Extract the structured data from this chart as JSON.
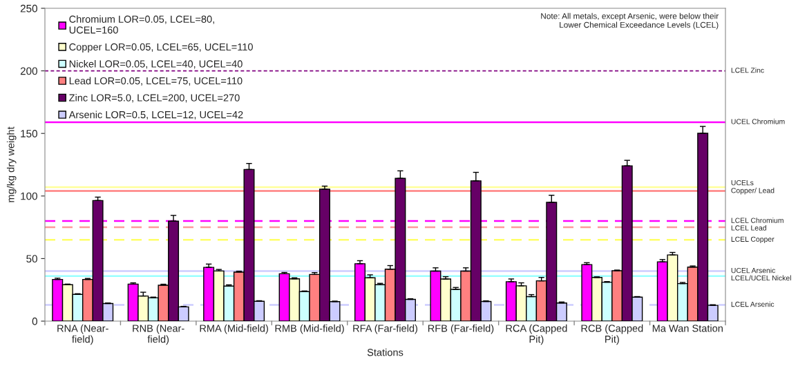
{
  "chart_data": {
    "type": "bar",
    "xlabel": "Stations",
    "ylabel": "mg/kg dry weight",
    "categories": [
      "RNA (Near-\nfield)",
      "RNB (Near-\nfield)",
      "RMA (Mid-field)",
      "RMB (Mid-field)",
      "RFA (Far-field)",
      "RFB (Far-field)",
      "RCA (Capped\nPit)",
      "RCB (Capped\nPit)",
      "Ma Wan Station"
    ],
    "series": [
      {
        "name": "Chromium LOR=0.05, LCEL=80,\nUCEL=160",
        "color": "#ff00ff",
        "values": [
          33.3,
          29.6,
          43.0,
          37.9,
          45.9,
          40.0,
          31.5,
          45.2,
          47.4
        ],
        "errors": [
          [
            33.3,
            34.3
          ],
          [
            29.6,
            30.6
          ],
          [
            43.0,
            45.6
          ],
          [
            37.9,
            38.9
          ],
          [
            45.9,
            48.3
          ],
          [
            40.0,
            42.6
          ],
          [
            31.5,
            33.7
          ],
          [
            45.2,
            46.7
          ],
          [
            47.4,
            49.2
          ]
        ]
      },
      {
        "name": "Copper LOR=0.05, LCEL=65, UCEL=110",
        "color": "#ffffcc",
        "values": [
          29.1,
          20.1,
          40.1,
          33.8,
          34.6,
          33.7,
          28.2,
          34.9,
          52.9
        ],
        "errors": [
          [
            29.1,
            29.6
          ],
          [
            20.1,
            23.1
          ],
          [
            40.1,
            41.3
          ],
          [
            33.8,
            34.6
          ],
          [
            34.6,
            37.0
          ],
          [
            33.7,
            35.5
          ],
          [
            28.2,
            30.6
          ],
          [
            34.9,
            35.4
          ],
          [
            52.9,
            54.9
          ]
        ]
      },
      {
        "name": "Nickel LOR=0.05, LCEL=40, UCEL=40",
        "color": "#ccffff",
        "values": [
          21.4,
          18.7,
          28.0,
          23.6,
          29.1,
          25.4,
          19.6,
          31.1,
          30.0
        ],
        "errors": [
          [
            21.4,
            21.9
          ],
          [
            18.7,
            19.2
          ],
          [
            28.0,
            29.0
          ],
          [
            23.6,
            24.1
          ],
          [
            29.1,
            30.2
          ],
          [
            25.4,
            26.9
          ],
          [
            19.6,
            21.2
          ],
          [
            31.1,
            31.6
          ],
          [
            30.0,
            30.9
          ]
        ]
      },
      {
        "name": "Lead LOR=0.05, LCEL=75, UCEL=110",
        "color": "#ff8080",
        "values": [
          33.3,
          28.7,
          39.2,
          37.3,
          41.5,
          40.0,
          32.2,
          40.3,
          43.2
        ],
        "errors": [
          [
            33.3,
            34.1
          ],
          [
            28.7,
            29.5
          ],
          [
            39.2,
            39.9
          ],
          [
            37.3,
            38.8
          ],
          [
            41.5,
            44.4
          ],
          [
            40.0,
            42.6
          ],
          [
            32.2,
            34.9
          ],
          [
            40.3,
            40.8
          ],
          [
            43.2,
            44.1
          ]
        ]
      },
      {
        "name": "Zinc LOR=5.0, LCEL=200, UCEL=270",
        "color": "#660066",
        "values": [
          96.4,
          79.9,
          121.2,
          105.5,
          114.1,
          112.1,
          94.9,
          124.1,
          150.1
        ],
        "errors": [
          [
            96.4,
            99.1
          ],
          [
            79.9,
            84.5
          ],
          [
            121.2,
            126.0
          ],
          [
            105.5,
            107.9
          ],
          [
            114.1,
            120.1
          ],
          [
            112.1,
            118.9
          ],
          [
            94.9,
            100.6
          ],
          [
            124.1,
            128.5
          ],
          [
            150.1,
            155.6
          ]
        ]
      },
      {
        "name": "Arsenic LOR=0.5, LCEL=12, UCEL=42",
        "color": "#ccccff",
        "values": [
          14.1,
          11.4,
          15.9,
          15.6,
          17.4,
          15.7,
          14.5,
          19.2,
          12.6
        ],
        "errors": [
          [
            14.1,
            14.5
          ],
          [
            11.4,
            11.8
          ],
          [
            15.9,
            16.3
          ],
          [
            15.6,
            16.0
          ],
          [
            17.4,
            17.9
          ],
          [
            15.7,
            16.2
          ],
          [
            14.5,
            15.3
          ],
          [
            19.2,
            19.6
          ],
          [
            12.6,
            13.1
          ]
        ]
      }
    ],
    "ylim": [
      0,
      250
    ],
    "yticks": [
      0,
      50,
      100,
      150,
      200,
      250
    ],
    "grid": false,
    "legend": "top left",
    "ref_lines": [
      {
        "axis": "y",
        "value": 200,
        "label": "LCEL Zinc",
        "color": "#800080",
        "line_style": "dotted"
      },
      {
        "axis": "y",
        "value": 159,
        "label": "UCEL Chromium",
        "color": "#ff00ff",
        "line_style": "solid"
      },
      {
        "axis": "y",
        "value": 107,
        "label": "UCELs\nCopper/ Lead",
        "color": "#ffff99",
        "line_style": "solid"
      },
      {
        "axis": "y",
        "value": 104,
        "color": "#ff8080",
        "line_style": "solid"
      },
      {
        "axis": "y",
        "value": 80,
        "label": "LCEL Chromium",
        "color": "#ff00ff",
        "line_style": "dashed"
      },
      {
        "axis": "y",
        "value": 75,
        "label": "LCEL Lead",
        "color": "#ff9999",
        "line_style": "dashed"
      },
      {
        "axis": "y",
        "value": 65,
        "label": "LCEL Copper",
        "color": "#ffff66",
        "line_style": "dashed"
      },
      {
        "axis": "y",
        "value": 40,
        "label": "UCEL Arsenic",
        "color": "#ccccff",
        "line_style": "solid"
      },
      {
        "axis": "y",
        "value": 36,
        "label": "LCEL/UCEL Nickel",
        "color": "#99ffff",
        "line_style": "solid"
      },
      {
        "axis": "y",
        "value": 13,
        "label": "LCEL Arsenic",
        "color": "#ccccff",
        "line_style": "dashed"
      }
    ],
    "annotations": [
      "Note: All metals, except Arsenic, were below their\nLower Chemical Exceedance Levels (LCEL)"
    ]
  }
}
